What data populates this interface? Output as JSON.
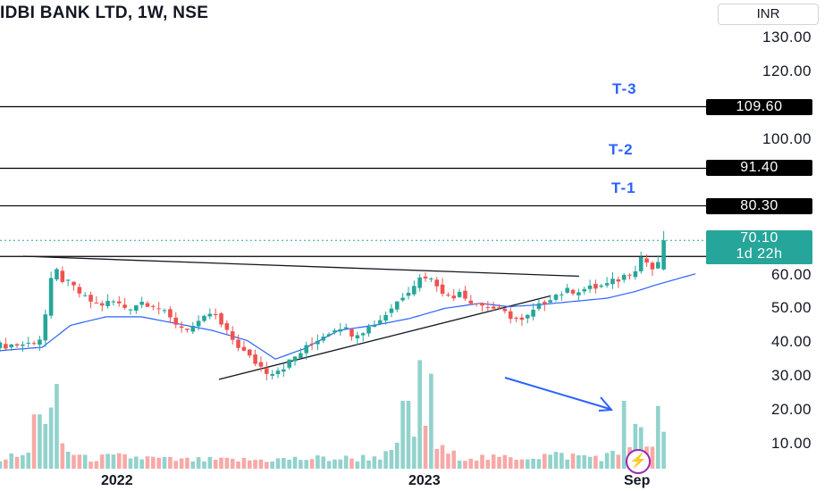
{
  "header": {
    "title": "IDBI BANK LTD, 1W, NSE",
    "currency": "INR"
  },
  "chart_data": {
    "type": "candlestick",
    "symbol": "IDBI BANK LTD",
    "interval": "1W",
    "exchange": "NSE",
    "currency": "INR",
    "ylim": [
      5,
      138
    ],
    "y_ticks": [
      "130.00",
      "120.00",
      "100.00",
      "60.00",
      "50.00",
      "40.00",
      "30.00",
      "20.00",
      "10.00"
    ],
    "x_ticks": [
      "2022",
      "2023",
      "Sep"
    ],
    "colors": {
      "up": "#26a69a",
      "down": "#ef5350",
      "ma": "#2962ff",
      "level": "#000000",
      "last": "#26a69a"
    },
    "levels": [
      {
        "label": "T-3",
        "price": "109.60",
        "value": 109.6
      },
      {
        "label": "T-2",
        "price": "91.40",
        "value": 91.4
      },
      {
        "label": "T-1",
        "price": "80.30",
        "value": 80.3
      },
      {
        "label": "",
        "price": "65.35",
        "value": 65.35
      }
    ],
    "last_price": {
      "value": 70.1,
      "text": "70.10",
      "countdown": "1d 22h"
    },
    "trendlines": [
      {
        "name": "descending-resistance",
        "from": [
          0.033,
          65.4
        ],
        "to": [
          0.82,
          59.5
        ]
      },
      {
        "name": "ascending-support",
        "from": [
          0.31,
          29.0
        ],
        "to": [
          0.78,
          53.7
        ]
      }
    ],
    "moving_average_anchors": [
      [
        0.0,
        37.5
      ],
      [
        0.06,
        38.5
      ],
      [
        0.1,
        45.0
      ],
      [
        0.15,
        47.5
      ],
      [
        0.2,
        47.5
      ],
      [
        0.25,
        45.5
      ],
      [
        0.3,
        43.5
      ],
      [
        0.35,
        40.5
      ],
      [
        0.39,
        35.0
      ],
      [
        0.43,
        38.0
      ],
      [
        0.48,
        43.5
      ],
      [
        0.53,
        45.0
      ],
      [
        0.58,
        47.0
      ],
      [
        0.63,
        50.0
      ],
      [
        0.68,
        51.5
      ],
      [
        0.72,
        50.5
      ],
      [
        0.76,
        51.0
      ],
      [
        0.81,
        52.0
      ],
      [
        0.86,
        53.0
      ],
      [
        0.9,
        55.0
      ],
      [
        0.93,
        57.0
      ],
      [
        0.99,
        60.5
      ]
    ],
    "price_anchors": [
      [
        0.0,
        39
      ],
      [
        0.04,
        39.5
      ],
      [
        0.06,
        41.5
      ],
      [
        0.07,
        57
      ],
      [
        0.08,
        61
      ],
      [
        0.09,
        58
      ],
      [
        0.1,
        57
      ],
      [
        0.12,
        53
      ],
      [
        0.14,
        51
      ],
      [
        0.16,
        52
      ],
      [
        0.18,
        50
      ],
      [
        0.2,
        52
      ],
      [
        0.22,
        51
      ],
      [
        0.24,
        47
      ],
      [
        0.26,
        44
      ],
      [
        0.28,
        45
      ],
      [
        0.3,
        49
      ],
      [
        0.32,
        43
      ],
      [
        0.35,
        36
      ],
      [
        0.38,
        31
      ],
      [
        0.4,
        32.5
      ],
      [
        0.42,
        36
      ],
      [
        0.45,
        41
      ],
      [
        0.48,
        45
      ],
      [
        0.5,
        42.5
      ],
      [
        0.52,
        44
      ],
      [
        0.54,
        47
      ],
      [
        0.56,
        51.5
      ],
      [
        0.58,
        56
      ],
      [
        0.6,
        60
      ],
      [
        0.62,
        57
      ],
      [
        0.64,
        52
      ],
      [
        0.65,
        56
      ],
      [
        0.66,
        53
      ],
      [
        0.68,
        51
      ],
      [
        0.7,
        50
      ],
      [
        0.72,
        48
      ],
      [
        0.74,
        46
      ],
      [
        0.76,
        50
      ],
      [
        0.78,
        53.5
      ],
      [
        0.8,
        55
      ],
      [
        0.82,
        55.5
      ],
      [
        0.84,
        56
      ],
      [
        0.86,
        57
      ],
      [
        0.88,
        59
      ],
      [
        0.9,
        62
      ],
      [
        0.91,
        66
      ],
      [
        0.92,
        62
      ],
      [
        0.93,
        61
      ],
      [
        0.94,
        70.1
      ]
    ],
    "volume_anchors": [
      [
        0.0,
        3
      ],
      [
        0.04,
        4
      ],
      [
        0.06,
        9
      ],
      [
        0.07,
        14
      ],
      [
        0.08,
        11
      ],
      [
        0.09,
        6
      ],
      [
        0.12,
        3
      ],
      [
        0.18,
        3.5
      ],
      [
        0.25,
        2.5
      ],
      [
        0.35,
        2.5
      ],
      [
        0.45,
        3
      ],
      [
        0.5,
        3
      ],
      [
        0.55,
        4
      ],
      [
        0.58,
        8
      ],
      [
        0.6,
        10
      ],
      [
        0.62,
        6
      ],
      [
        0.64,
        4
      ],
      [
        0.7,
        3
      ],
      [
        0.78,
        4
      ],
      [
        0.85,
        3.5
      ],
      [
        0.88,
        4.5
      ],
      [
        0.9,
        11
      ],
      [
        0.92,
        7
      ],
      [
        0.93,
        4
      ],
      [
        0.94,
        9
      ]
    ],
    "volume_spikes": [
      [
        0.052,
        16
      ],
      [
        0.083,
        25
      ],
      [
        0.575,
        20
      ],
      [
        0.593,
        32
      ],
      [
        0.612,
        28
      ],
      [
        0.885,
        20
      ],
      [
        0.935,
        18.5
      ]
    ],
    "bar_count": 118
  }
}
